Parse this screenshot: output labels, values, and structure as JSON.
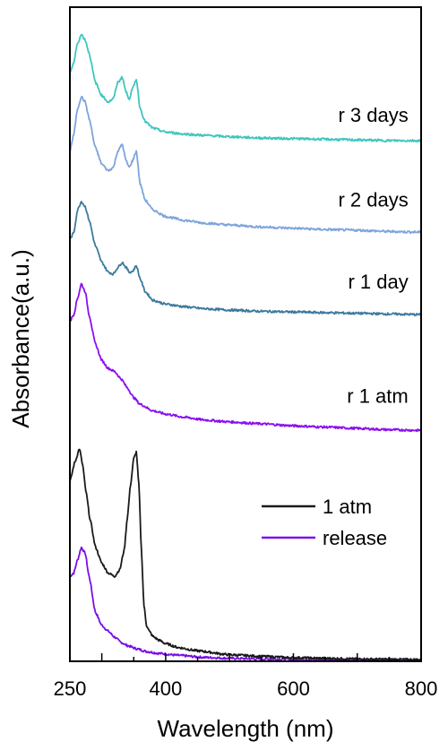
{
  "chart_data": {
    "type": "line",
    "title": "",
    "xlabel": "Wavelength (nm)",
    "ylabel": "Absorbance(a.u.)",
    "xlim": [
      250,
      800
    ],
    "ylim": [
      0,
      100
    ],
    "x_ticks": [
      250,
      400,
      600,
      800
    ],
    "y_ticks": [],
    "grid": false,
    "legend_position": "center-right",
    "legend": [
      {
        "label": "1 atm",
        "color": "#1a1a1a"
      },
      {
        "label": "release",
        "color": "#7a0fe6"
      }
    ],
    "series": [
      {
        "name": "release",
        "color": "#7a0fe6",
        "x": [
          250,
          256,
          262,
          268,
          274,
          280,
          290,
          300,
          310,
          320,
          330,
          340,
          355,
          370,
          390,
          420,
          460,
          500,
          550,
          600,
          650,
          700,
          750,
          800
        ],
        "y": [
          13.0,
          13.5,
          15.5,
          17.4,
          16.5,
          13.0,
          7.5,
          5.5,
          4.6,
          3.7,
          2.9,
          2.4,
          1.9,
          1.5,
          1.2,
          0.9,
          0.6,
          0.45,
          0.35,
          0.3,
          0.25,
          0.22,
          0.2,
          0.18
        ]
      },
      {
        "name": "1 atm",
        "color": "#1a1a1a",
        "x": [
          250,
          258,
          265,
          270,
          275,
          282,
          290,
          300,
          310,
          320,
          328,
          335,
          340,
          345,
          350,
          354,
          358,
          362,
          366,
          370,
          375,
          380,
          390,
          400,
          420,
          450,
          500,
          550,
          600,
          650,
          700,
          750,
          800
        ],
        "y": [
          27.5,
          30.5,
          32.5,
          30.0,
          26.0,
          21.5,
          17.5,
          15.0,
          13.5,
          13.0,
          14.0,
          17.0,
          22.0,
          27.0,
          31.0,
          32.0,
          27.0,
          17.0,
          8.5,
          5.5,
          4.5,
          3.8,
          3.2,
          2.7,
          2.1,
          1.6,
          1.0,
          0.75,
          0.55,
          0.45,
          0.35,
          0.3,
          0.25
        ]
      },
      {
        "name": "r 1 atm",
        "color": "#8a10f0",
        "x": [
          250,
          256,
          262,
          268,
          274,
          280,
          290,
          300,
          310,
          320,
          330,
          340,
          350,
          360,
          380,
          400,
          430,
          460,
          500,
          550,
          600,
          650,
          700,
          750,
          800
        ],
        "y": [
          52.0,
          53.0,
          55.5,
          57.7,
          56.5,
          53.0,
          48.5,
          46.0,
          44.8,
          44.3,
          43.2,
          41.8,
          40.3,
          39.3,
          38.3,
          37.8,
          37.3,
          36.9,
          36.6,
          36.3,
          36.0,
          35.8,
          35.6,
          35.4,
          35.3
        ]
      },
      {
        "name": "r 1 day",
        "color": "#3d7a9e",
        "x": [
          250,
          256,
          262,
          268,
          274,
          280,
          290,
          300,
          310,
          318,
          325,
          332,
          338,
          343,
          348,
          354,
          360,
          368,
          380,
          400,
          430,
          460,
          500,
          550,
          600,
          650,
          700,
          750,
          800
        ],
        "y": [
          64.5,
          65.5,
          69.0,
          70.3,
          69.5,
          67.5,
          63.5,
          61.0,
          59.5,
          59.2,
          60.2,
          61.0,
          60.2,
          59.5,
          59.6,
          60.5,
          58.5,
          56.5,
          55.2,
          54.6,
          54.2,
          53.9,
          53.7,
          53.5,
          53.4,
          53.3,
          53.2,
          53.1,
          53.0
        ]
      },
      {
        "name": "r 2 days",
        "color": "#7ea4dc",
        "x": [
          250,
          256,
          262,
          268,
          274,
          280,
          290,
          300,
          310,
          318,
          325,
          332,
          338,
          343,
          348,
          354,
          360,
          368,
          380,
          400,
          430,
          460,
          500,
          550,
          600,
          650,
          700,
          750,
          800
        ],
        "y": [
          78.0,
          80.5,
          84.5,
          86.3,
          85.5,
          83.0,
          78.5,
          76.0,
          75.0,
          75.5,
          78.0,
          79.0,
          76.5,
          75.5,
          76.5,
          78.0,
          73.0,
          70.5,
          69.0,
          68.0,
          67.4,
          67.0,
          66.7,
          66.4,
          66.2,
          66.0,
          65.9,
          65.7,
          65.6
        ]
      },
      {
        "name": "r 3 days",
        "color": "#3ec6be",
        "x": [
          250,
          256,
          262,
          268,
          274,
          280,
          290,
          300,
          310,
          318,
          325,
          332,
          338,
          343,
          348,
          354,
          360,
          368,
          380,
          400,
          430,
          460,
          500,
          550,
          600,
          650,
          700,
          750,
          800
        ],
        "y": [
          90.0,
          91.5,
          94.5,
          95.8,
          95.0,
          93.0,
          88.5,
          86.5,
          85.5,
          86.0,
          88.5,
          89.3,
          87.0,
          86.0,
          87.5,
          89.0,
          84.5,
          82.5,
          81.5,
          80.9,
          80.6,
          80.4,
          80.2,
          80.0,
          79.9,
          79.8,
          79.7,
          79.6,
          79.6
        ]
      }
    ],
    "annotations": [
      {
        "text": "r 3 days",
        "x": 780,
        "y": 82.5
      },
      {
        "text": "r 2 days",
        "x": 780,
        "y": 69.5
      },
      {
        "text": "r 1 day",
        "x": 780,
        "y": 57.0
      },
      {
        "text": "r 1 atm",
        "x": 780,
        "y": 39.5
      }
    ]
  }
}
